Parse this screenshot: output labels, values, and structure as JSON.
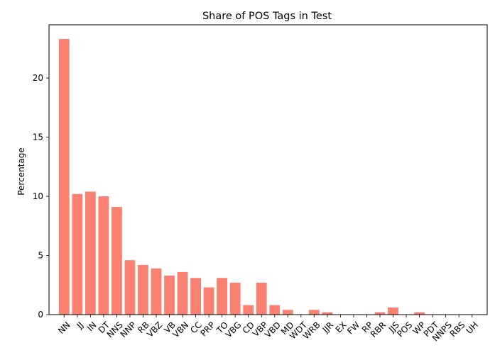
{
  "chart_data": {
    "type": "bar",
    "title": "Share of POS Tags in Test",
    "xlabel": "",
    "ylabel": "Percentage",
    "ylim": [
      0,
      24.5
    ],
    "yticks": [
      0,
      5,
      10,
      15,
      20
    ],
    "grid": false,
    "legend": "none",
    "bar_color": "#fa8072",
    "categories": [
      "NN",
      "JJ",
      "IN",
      "DT",
      "NNS",
      "NNP",
      "RB",
      "VBZ",
      "VB",
      "VBN",
      "CC",
      "PRP",
      "TO",
      "VBG",
      "CD",
      "VBP",
      "VBD",
      "MD",
      "WDT",
      "WRB",
      "JJR",
      "EX",
      "FW",
      "RP",
      "RBR",
      "JJS",
      "POS",
      "WP",
      "PDT",
      "NNPS",
      "RBS",
      "UH"
    ],
    "values": [
      23.3,
      10.2,
      10.4,
      10.0,
      9.1,
      4.6,
      4.2,
      3.9,
      3.3,
      3.6,
      3.1,
      2.3,
      3.1,
      2.7,
      0.8,
      2.7,
      0.8,
      0.4,
      0.0,
      0.4,
      0.2,
      0.0,
      0.0,
      0.0,
      0.2,
      0.6,
      0.0,
      0.2,
      0.0,
      0.0,
      0.0,
      0.0
    ]
  }
}
